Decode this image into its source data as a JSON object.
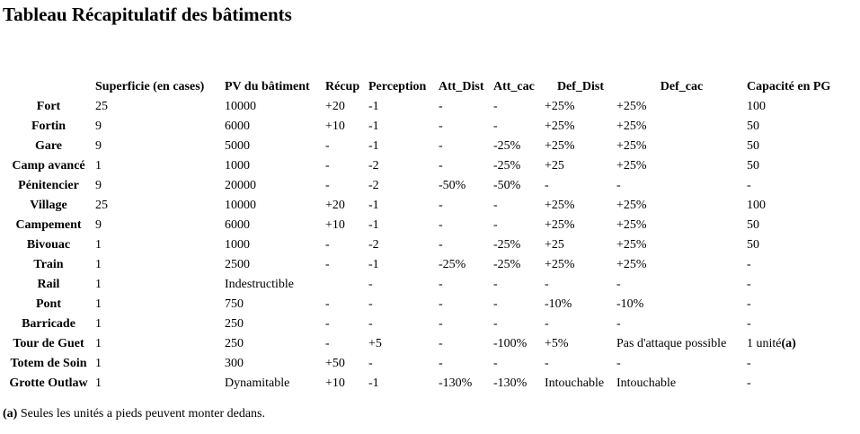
{
  "title": "Tableau Récapitulatif des bâtiments",
  "table": {
    "columns": [
      "",
      "Superficie (en cases)",
      "PV du bâtiment",
      "Récup",
      "Perception",
      "Att_Dist",
      "Att_cac",
      "Def_Dist",
      "Def_cac",
      "Capacité en PG"
    ],
    "rows": [
      {
        "name": "Fort",
        "cells": [
          "25",
          "10000",
          "+20",
          "-1",
          "-",
          "-",
          "+25%",
          "+25%",
          "100"
        ]
      },
      {
        "name": "Fortin",
        "cells": [
          "9",
          "6000",
          "+10",
          "-1",
          "-",
          "-",
          "+25%",
          "+25%",
          "50"
        ]
      },
      {
        "name": "Gare",
        "cells": [
          "9",
          "5000",
          "-",
          "-1",
          "-",
          "-25%",
          "+25%",
          "+25%",
          "50"
        ]
      },
      {
        "name": "Camp avancé",
        "cells": [
          "1",
          "1000",
          "-",
          "-2",
          "-",
          "-25%",
          "+25",
          "+25%",
          "50"
        ]
      },
      {
        "name": "Pénitencier",
        "cells": [
          "9",
          "20000",
          "-",
          "-2",
          "-50%",
          "-50%",
          "-",
          "-",
          "-"
        ]
      },
      {
        "name": "Village",
        "cells": [
          "25",
          "10000",
          "+20",
          "-1",
          "-",
          "-",
          "+25%",
          "+25%",
          "100"
        ]
      },
      {
        "name": "Campement",
        "cells": [
          "9",
          "6000",
          "+10",
          "-1",
          "-",
          "-",
          "+25%",
          "+25%",
          "50"
        ]
      },
      {
        "name": "Bivouac",
        "cells": [
          "1",
          "1000",
          "-",
          "-2",
          "-",
          "-25%",
          "+25",
          "+25%",
          "50"
        ]
      },
      {
        "name": "Train",
        "cells": [
          "1",
          "2500",
          "-",
          "-1",
          "-25%",
          "-25%",
          "+25%",
          "+25%",
          "-"
        ]
      },
      {
        "name": "Rail",
        "cells": [
          "1",
          "Indestructible",
          "",
          "-",
          "-",
          "-",
          "-",
          "-",
          "-"
        ]
      },
      {
        "name": "Pont",
        "cells": [
          "1",
          "750",
          "-",
          "-",
          "-",
          "-",
          "-10%",
          "-10%",
          "-"
        ]
      },
      {
        "name": "Barricade",
        "cells": [
          "1",
          "250",
          "-",
          "-",
          "-",
          "-",
          "-",
          "-",
          "-"
        ]
      },
      {
        "name": "Tour de Guet",
        "cells": [
          "1",
          "250",
          "-",
          "+5",
          "-",
          "-100%",
          "+5%",
          "Pas d'attaque possible",
          "1 unité"
        ],
        "capacity_note": "(a)"
      },
      {
        "name": "Totem de Soin",
        "cells": [
          "1",
          "300",
          "+50",
          "-",
          "-",
          "-",
          "-",
          "-",
          "-"
        ]
      },
      {
        "name": "Grotte Outlaw",
        "cells": [
          "1",
          "Dynamitable",
          "+10",
          "-1",
          "-130%",
          "-130%",
          "Intouchable",
          "Intouchable",
          "-"
        ]
      }
    ]
  },
  "footnote": {
    "marker": "(a)",
    "text": " Seules les unités a pieds peuvent monter dedans."
  }
}
